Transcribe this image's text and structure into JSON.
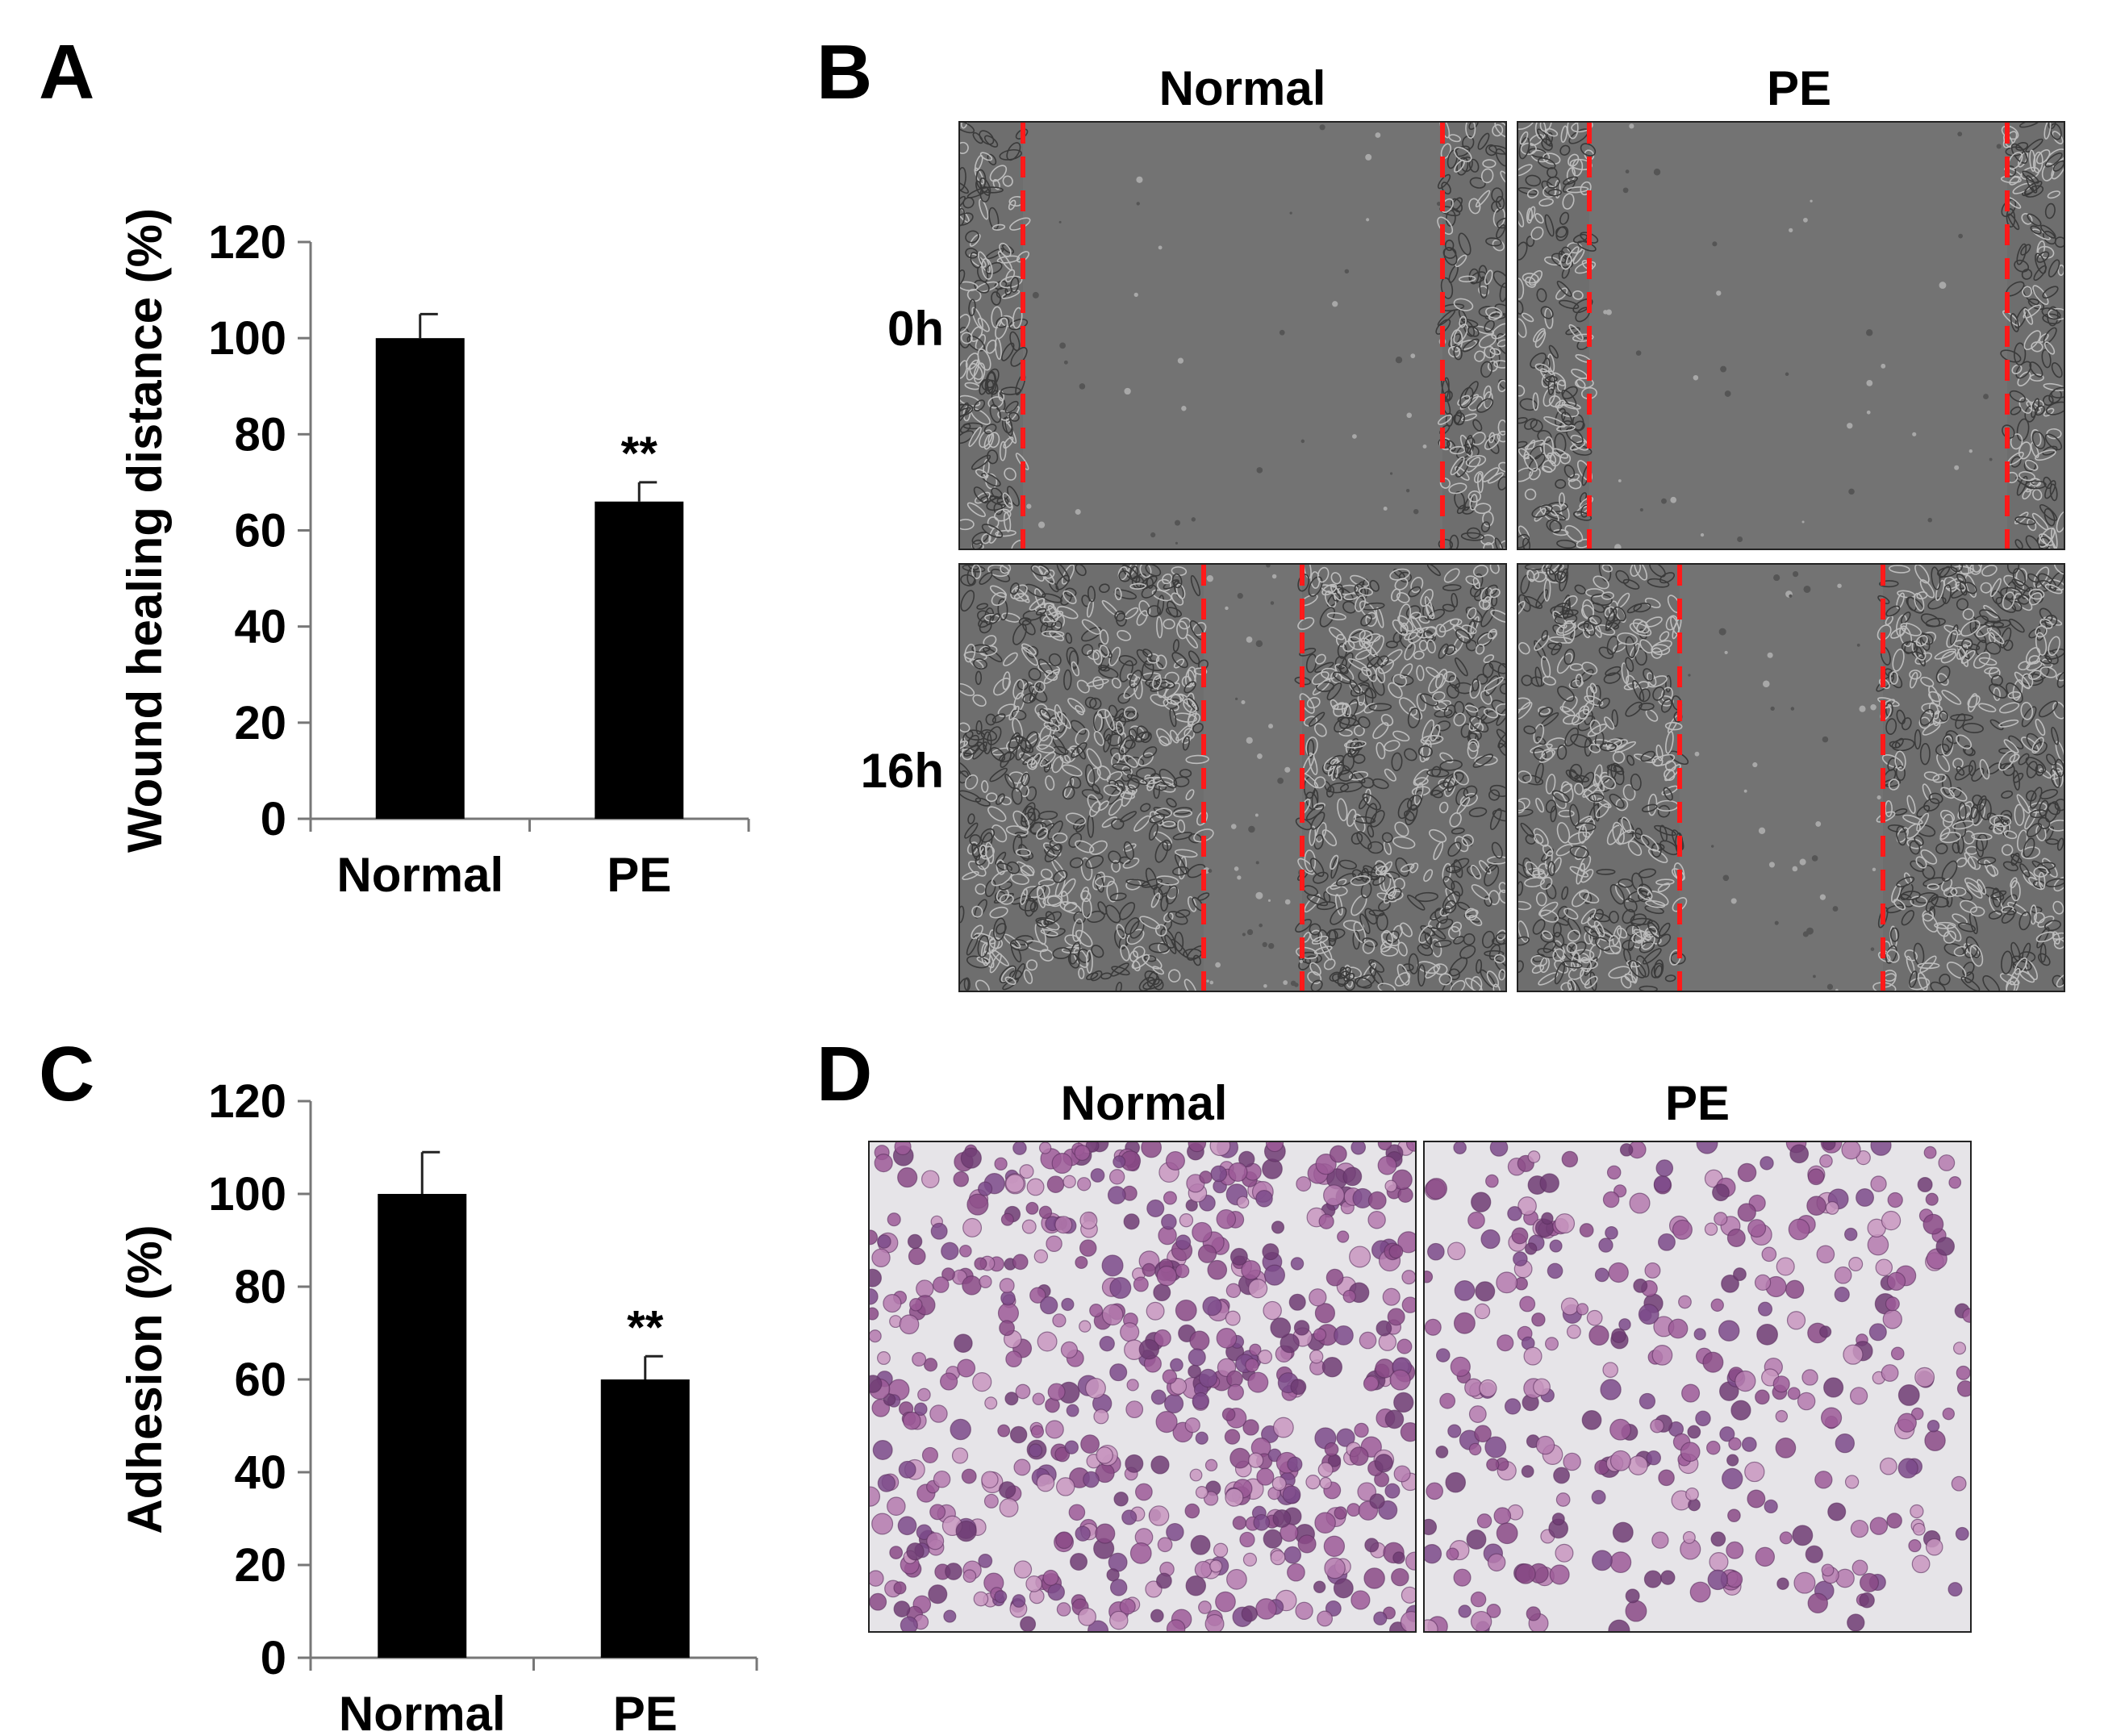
{
  "panels": {
    "A": {
      "letter": "A"
    },
    "B": {
      "letter": "B",
      "col_labels": [
        "Normal",
        "PE"
      ],
      "row_labels": [
        "0h",
        "16h"
      ]
    },
    "C": {
      "letter": "C"
    },
    "D": {
      "letter": "D",
      "col_labels": [
        "Normal",
        "PE"
      ]
    }
  },
  "chart_data": [
    {
      "type": "bar",
      "panel": "A",
      "categories": [
        "Normal",
        "PE"
      ],
      "values": [
        100,
        66
      ],
      "errors": [
        5,
        4
      ],
      "annotations": [
        "",
        "**"
      ],
      "ylabel": "Wound healing distance (%)",
      "xlabel": "",
      "ylim": [
        0,
        120
      ],
      "yticks": [
        0,
        20,
        40,
        60,
        80,
        100,
        120
      ],
      "bar_color": "#000000"
    },
    {
      "type": "bar",
      "panel": "C",
      "categories": [
        "Normal",
        "PE"
      ],
      "values": [
        100,
        60
      ],
      "errors": [
        9,
        5
      ],
      "annotations": [
        "",
        "**"
      ],
      "ylabel": "Adhesion (%)",
      "xlabel": "",
      "ylim": [
        0,
        120
      ],
      "yticks": [
        0,
        20,
        40,
        60,
        80,
        100,
        120
      ],
      "bar_color": "#000000"
    }
  ],
  "colors": {
    "scratch_line": "#ff1a1a",
    "micrograph_gray": "#6e6e6e",
    "stain_cell": "#8a4a86",
    "stain_background": "#e6e4e8"
  }
}
